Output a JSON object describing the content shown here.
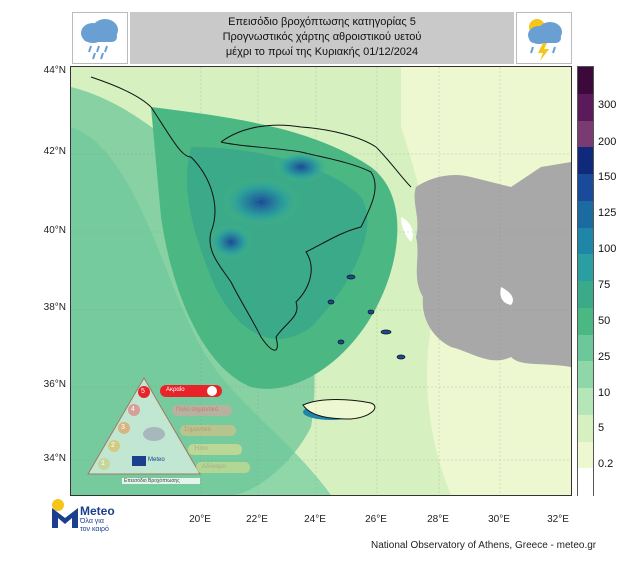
{
  "title": {
    "line1": "Επεισόδιο βροχόπτωσης κατηγορίας 5",
    "line2": "Προγνωστικός χάρτης αθροιστικού υετού",
    "line3": "μέχρι το πρωί της Κυριακής 01/12/2024"
  },
  "icons": {
    "left": "rain-cloud-icon",
    "right": "thunderstorm-cloud-icon",
    "logo": "meteo-logo-icon",
    "severity": "severity-triangle-icon"
  },
  "lat_labels": [
    "44°N",
    "42°N",
    "40°N",
    "38°N",
    "36°N",
    "34°N"
  ],
  "lon_labels": [
    "20°E",
    "22°E",
    "24°E",
    "26°E",
    "28°E",
    "30°E",
    "32°E"
  ],
  "colorbar": {
    "labels": [
      "300",
      "200",
      "150",
      "125",
      "100",
      "75",
      "50",
      "25",
      "10",
      "5",
      "0.2"
    ],
    "colors": [
      "#3b0a3a",
      "#5b1a5a",
      "#7a3a72",
      "#0f2a7a",
      "#1a4a9a",
      "#1b6aa0",
      "#1f86a8",
      "#2a9ea0",
      "#3aaa88",
      "#4bb884",
      "#6cc79a",
      "#8fd7a8",
      "#b5e6b8",
      "#d6f0c0",
      "#eef8d0",
      "#ffffff"
    ]
  },
  "severity_scale": {
    "title": "Επεισόδιο Βροχόπτωσης",
    "levels": [
      "Ακραίο",
      "Πολύ σημαντικό",
      "Σημαντικό",
      "Ήπιο",
      "Αδύναμο"
    ],
    "numbers": [
      "5",
      "4",
      "3",
      "2",
      "1"
    ],
    "brand": "Meteo"
  },
  "logo": {
    "name": "Meteo",
    "tagline_1": "Όλα για",
    "tagline_2": "τον καιρό"
  },
  "footer": "National Observatory of Athens, Greece - meteo.gr",
  "colors": {
    "sea": "#b8e8b0",
    "land_grey": "#a8a8a8",
    "extreme_red": "#e8242a",
    "brand_blue": "#1b3f8f",
    "brand_yellow": "#f5c518"
  }
}
